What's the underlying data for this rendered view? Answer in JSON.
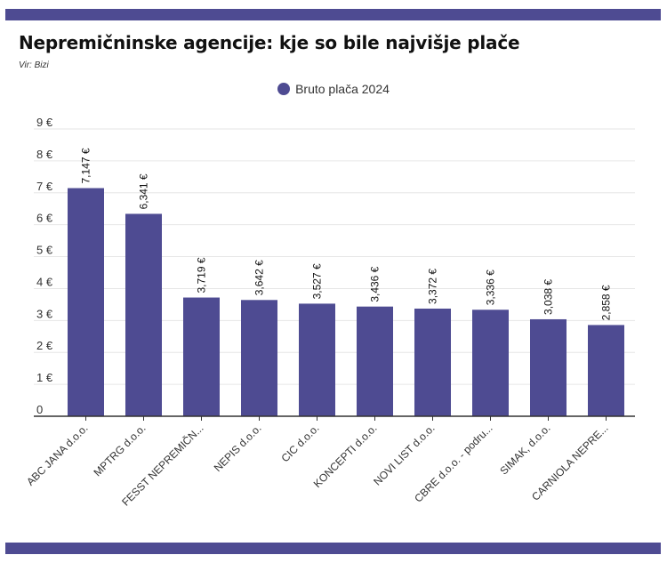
{
  "chart_title": "Nepremičninske agencije: kje so bile najvišje plače",
  "source": "Vir: Bizi",
  "colors": {
    "accent": "#4e4b92",
    "grid": "#e6e6e6",
    "axis": "#333333"
  },
  "chart_data": {
    "type": "bar",
    "title": "Nepremičninske agencije: kje so bile najvišje plače",
    "categories": [
      "ABC JANA d.o.o.",
      "MPTRG d.o.o.",
      "FESST NEPREMIČN...",
      "NEPIS d.o.o.",
      "CIC d.o.o.",
      "KONCEPTI d.o.o.",
      "NOVI LIST d.o.o.",
      "CBRE d.o.o. - podru...",
      "SIMAK, d.o.o.",
      "CARNIOLA NEPRE..."
    ],
    "series": [
      {
        "name": "Bruto plača 2024",
        "values": [
          7.147,
          6.341,
          3.719,
          3.642,
          3.527,
          3.436,
          3.372,
          3.336,
          3.038,
          2.858
        ],
        "labels": [
          "7,147 €",
          "6,341 €",
          "3,719 €",
          "3,642 €",
          "3,527 €",
          "3,436 €",
          "3,372 €",
          "3,336 €",
          "3,038 €",
          "2,858 €"
        ]
      }
    ],
    "y_ticks": [
      "0",
      "1 €",
      "2 €",
      "3 €",
      "4 €",
      "5 €",
      "6 €",
      "7 €",
      "8 €",
      "9 €"
    ],
    "ylim": [
      0,
      9
    ],
    "grid": true,
    "legend_position": "top-center"
  }
}
